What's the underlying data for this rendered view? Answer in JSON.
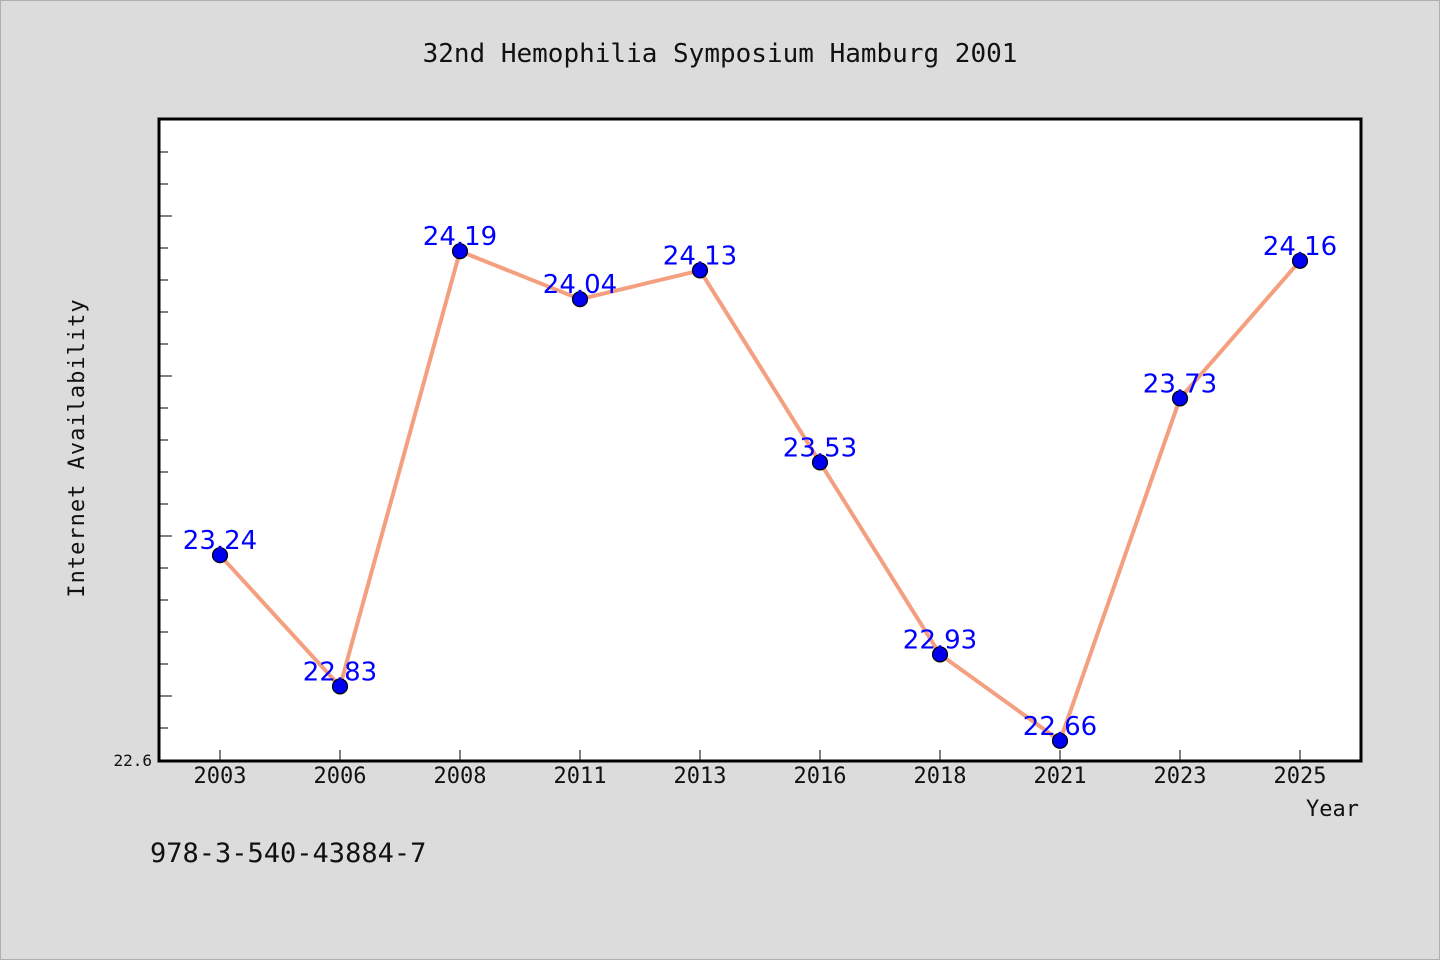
{
  "chart_data": {
    "type": "line",
    "title": "32nd Hemophilia Symposium Hamburg 2001",
    "xlabel": "Year",
    "ylabel": "Internet Availability",
    "categories": [
      "2003",
      "2006",
      "2008",
      "2011",
      "2013",
      "2016",
      "2018",
      "2021",
      "2023",
      "2025"
    ],
    "series": [
      {
        "values": [
          23.24,
          22.83,
          24.19,
          24.04,
          24.13,
          23.53,
          22.93,
          22.66,
          23.73,
          24.16
        ],
        "data_labels": [
          "23.24",
          "22.83",
          "24.19",
          "24.04",
          "24.13",
          "23.53",
          "22.93",
          "22.66",
          "23.73",
          "24.16"
        ]
      }
    ],
    "ylim": [
      22.6,
      24.6
    ],
    "y_tick_label": "22.6",
    "grid": false,
    "legend": "none",
    "line_color": "#f4a080",
    "marker_color": "#0000ee",
    "label_color": "#0000ff",
    "plot_background": "#ffffff",
    "figure_background": "#dcdcdc"
  },
  "footer": {
    "isbn": "978-3-540-43884-7"
  }
}
